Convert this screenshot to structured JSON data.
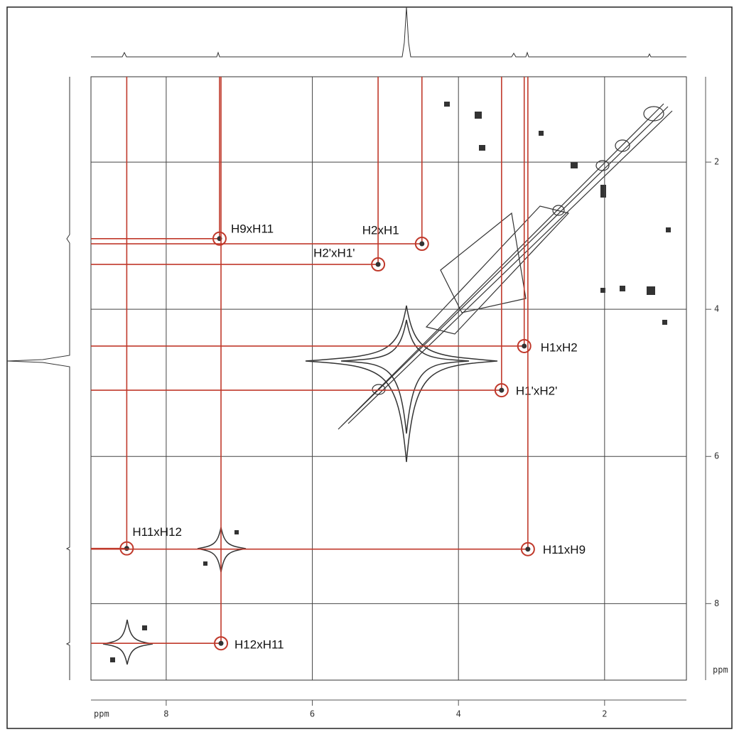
{
  "chart_data": {
    "type": "scatter",
    "x_label": "ppm",
    "y_label": "ppm",
    "xlim": [
      9.03,
      0.88
    ],
    "ylim": [
      0.84,
      9.04
    ],
    "xticks": [
      8,
      6,
      4,
      2
    ],
    "yticks": [
      2,
      4,
      6,
      8
    ],
    "grid": true,
    "marker_color": "#c0392b",
    "peaks": [
      {
        "label": "H9xH11",
        "x": 7.27,
        "y": 3.04
      },
      {
        "label": "H2xH1",
        "x": 4.5,
        "y": 3.11
      },
      {
        "label": "H2'xH1'",
        "x": 5.1,
        "y": 3.39
      },
      {
        "label": "H1xH2",
        "x": 3.1,
        "y": 4.5
      },
      {
        "label": "H1'xH2'",
        "x": 3.41,
        "y": 5.1
      },
      {
        "label": "H11xH12",
        "x": 8.54,
        "y": 7.25
      },
      {
        "label": "H11xH9",
        "x": 3.05,
        "y": 7.26
      },
      {
        "label": "H12xH11",
        "x": 7.25,
        "y": 8.54
      }
    ]
  }
}
